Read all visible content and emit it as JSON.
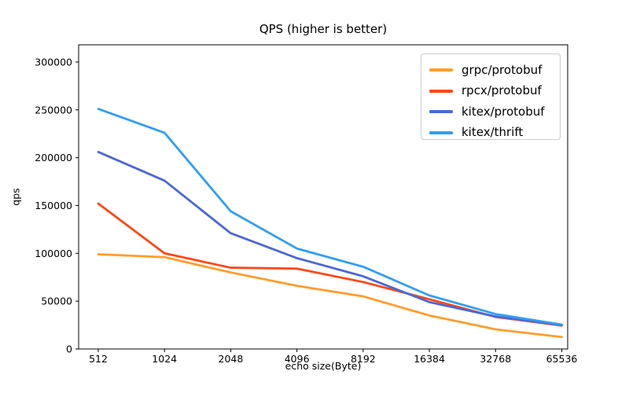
{
  "chart_data": {
    "type": "line",
    "title": "QPS (higher is better)",
    "xlabel": "echo size(Byte)",
    "ylabel": "qps",
    "categories": [
      512,
      1024,
      2048,
      4096,
      8192,
      16384,
      32768,
      65536
    ],
    "x_scale": "categorical (log2-spaced byte sizes, evenly spaced ticks)",
    "yticks": [
      0,
      50000,
      100000,
      150000,
      200000,
      250000,
      300000
    ],
    "ylim": [
      0,
      318000
    ],
    "grid": false,
    "legend_position": "upper right",
    "axis_color": "#000000",
    "background_color": "#ffffff",
    "series": [
      {
        "name": "grpc/protobuf",
        "color": "#ff9d2b",
        "values": [
          99000,
          96000,
          80000,
          66000,
          55000,
          35000,
          20500,
          12500
        ]
      },
      {
        "name": "rpcx/protobuf",
        "color": "#ff4714",
        "values": [
          152000,
          100000,
          85000,
          84000,
          70000,
          52000,
          33500,
          24500
        ]
      },
      {
        "name": "kitex/protobuf",
        "color": "#4a68d8",
        "values": [
          206000,
          176000,
          121000,
          95000,
          76000,
          49000,
          34000,
          25000
        ]
      },
      {
        "name": "kitex/thrift",
        "color": "#2f9ff5",
        "values": [
          251000,
          226000,
          144000,
          105000,
          86000,
          56000,
          36500,
          25500
        ]
      }
    ]
  }
}
